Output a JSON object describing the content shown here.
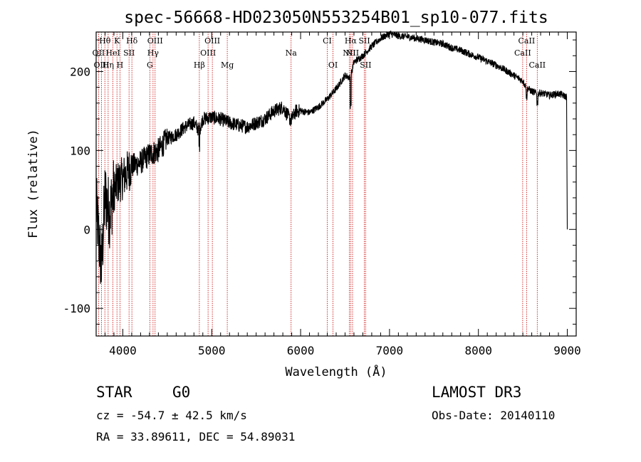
{
  "chart_data": {
    "type": "line",
    "title": "spec-56668-HD023050N553254B01_sp10-077.fits",
    "xlabel": "Wavelength (Å)",
    "ylabel": "Flux (relative)",
    "xlim": [
      3700,
      9100
    ],
    "ylim": [
      -135,
      250
    ],
    "x_ticks": [
      4000,
      5000,
      6000,
      7000,
      8000,
      9000
    ],
    "y_ticks": [
      -100,
      0,
      100,
      200
    ],
    "spectrum_anchors": {
      "x": [
        3700,
        3760,
        3800,
        3850,
        3900,
        3950,
        4000,
        4100,
        4200,
        4300,
        4400,
        4500,
        4600,
        4700,
        4800,
        4860,
        4900,
        5000,
        5100,
        5200,
        5300,
        5400,
        5500,
        5600,
        5700,
        5800,
        5890,
        5950,
        6000,
        6100,
        6200,
        6300,
        6400,
        6500,
        6560,
        6600,
        6700,
        6800,
        6900,
        7000,
        7100,
        7200,
        7300,
        7400,
        7500,
        7600,
        7700,
        7800,
        7900,
        8000,
        8100,
        8200,
        8300,
        8400,
        8500,
        8540,
        8600,
        8660,
        8700,
        8800,
        8900,
        8990,
        9000
      ],
      "y": [
        30,
        -50,
        45,
        20,
        50,
        60,
        65,
        80,
        85,
        95,
        100,
        115,
        120,
        130,
        135,
        125,
        140,
        142,
        140,
        135,
        132,
        130,
        135,
        140,
        150,
        155,
        138,
        150,
        150,
        148,
        155,
        165,
        178,
        195,
        192,
        212,
        220,
        232,
        242,
        248,
        245,
        244,
        242,
        240,
        237,
        235,
        230,
        227,
        222,
        218,
        213,
        208,
        202,
        195,
        188,
        180,
        175,
        172,
        173,
        170,
        172,
        168,
        0
      ]
    },
    "lines": [
      {
        "label": "Hθ",
        "x": 3798,
        "row": 0
      },
      {
        "label": "K",
        "x": 3934,
        "row": 0
      },
      {
        "label": "Hδ",
        "x": 4102,
        "row": 0
      },
      {
        "label": "OIII",
        "x": 4363,
        "row": 0
      },
      {
        "label": "OIII",
        "x": 5007,
        "row": 0
      },
      {
        "label": "CI",
        "x": 6300,
        "row": 0
      },
      {
        "label": "Hα",
        "x": 6563,
        "row": 0
      },
      {
        "label": "SII",
        "x": 6717,
        "row": 0
      },
      {
        "label": "CaII",
        "x": 8542,
        "row": 0
      },
      {
        "label": "OII",
        "x": 3727,
        "row": 1
      },
      {
        "label": "HeI",
        "x": 3889,
        "row": 1
      },
      {
        "label": "SII",
        "x": 4070,
        "row": 1
      },
      {
        "label": "Hγ",
        "x": 4340,
        "row": 1
      },
      {
        "label": "OIII",
        "x": 4959,
        "row": 1
      },
      {
        "label": "Na",
        "x": 5893,
        "row": 1
      },
      {
        "label": "NII",
        "x": 6548,
        "row": 1
      },
      {
        "label": "NII",
        "x": 6584,
        "row": 1
      },
      {
        "label": "CaII",
        "x": 8498,
        "row": 1
      },
      {
        "label": "OIII",
        "x": 3760,
        "row": 2
      },
      {
        "label": "Hη",
        "x": 3835,
        "row": 2
      },
      {
        "label": "H",
        "x": 3968,
        "row": 2
      },
      {
        "label": "G",
        "x": 4304,
        "row": 2
      },
      {
        "label": "Hβ",
        "x": 4861,
        "row": 2
      },
      {
        "label": "Mg",
        "x": 5175,
        "row": 2
      },
      {
        "label": "OI",
        "x": 6364,
        "row": 2
      },
      {
        "label": "SII",
        "x": 6731,
        "row": 2
      },
      {
        "label": "CaII",
        "x": 8662,
        "row": 2
      }
    ]
  },
  "info": {
    "object_class": "STAR",
    "subclass": "G0",
    "survey": "LAMOST DR3",
    "redshift": "cz = -54.7 ± 42.5 km/s",
    "obs_date": "Obs-Date: 20140110",
    "coords": "RA =  33.89611, DEC =  54.89031"
  },
  "colors": {
    "spectrum": "#000000",
    "line_markers": "#cc0000",
    "axes": "#000000"
  }
}
